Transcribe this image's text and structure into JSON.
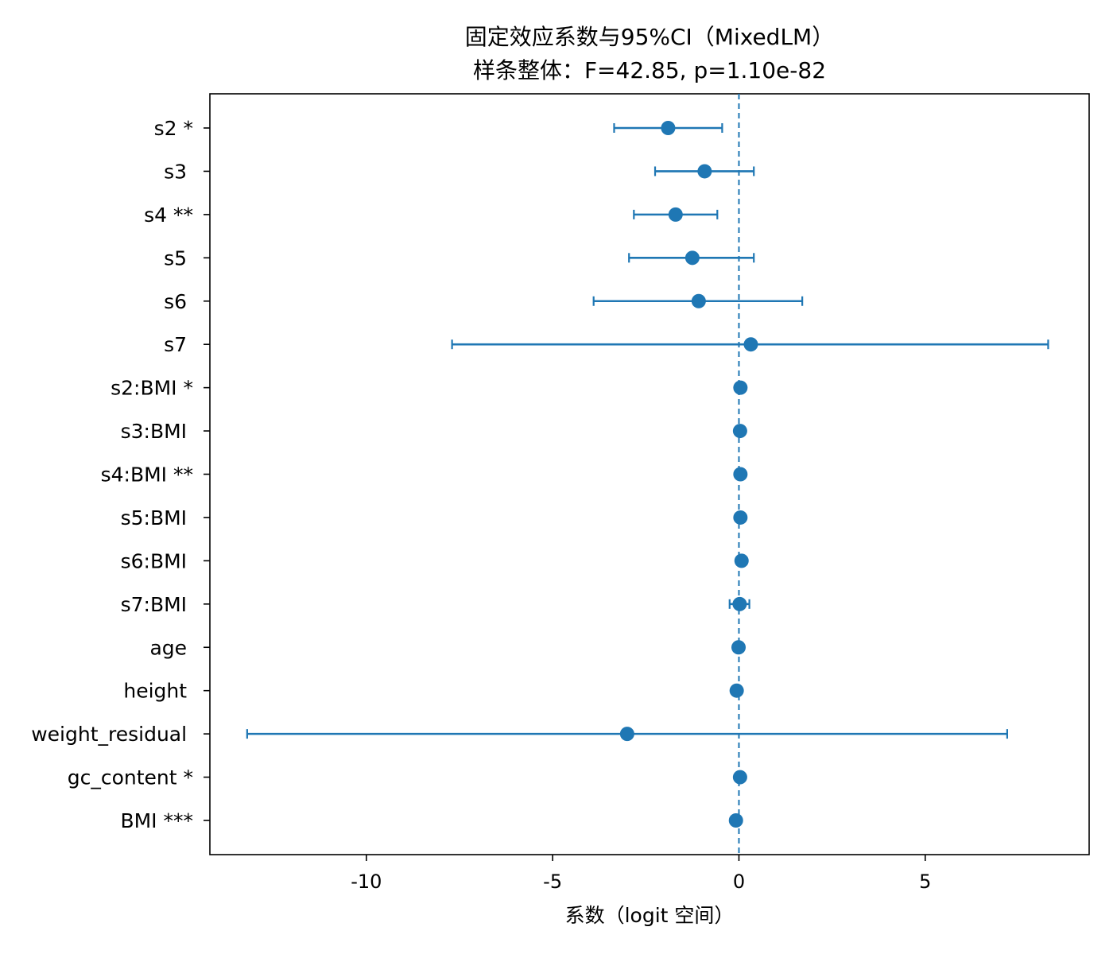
{
  "chart_data": {
    "type": "forest",
    "title": "固定效应系数与95%CI（MixedLM）",
    "subtitle": "样条整体：F=42.85, p=1.10e-82",
    "xlabel": "系数（logit 空间）",
    "ylabel": "",
    "xlim": [
      -14.2,
      9.4
    ],
    "xticks": [
      -10,
      -5,
      0,
      5
    ],
    "xtick_labels": [
      "-10",
      "-5",
      "0",
      "5"
    ],
    "reference_line": 0,
    "color": "#1f77b4",
    "terms": [
      {
        "label": "s2 *",
        "coef": -1.9,
        "lo": -3.35,
        "hi": -0.45
      },
      {
        "label": "s3 ",
        "coef": -0.92,
        "lo": -2.25,
        "hi": 0.4
      },
      {
        "label": "s4 **",
        "coef": -1.7,
        "lo": -2.82,
        "hi": -0.58
      },
      {
        "label": "s5 ",
        "coef": -1.25,
        "lo": -2.95,
        "hi": 0.4
      },
      {
        "label": "s6 ",
        "coef": -1.08,
        "lo": -3.9,
        "hi": 1.7
      },
      {
        "label": "s7 ",
        "coef": 0.32,
        "lo": -7.7,
        "hi": 8.3
      },
      {
        "label": "s2:BMI *",
        "coef": 0.04,
        "lo": 0.01,
        "hi": 0.07
      },
      {
        "label": "s3:BMI ",
        "coef": 0.03,
        "lo": 0.0,
        "hi": 0.06
      },
      {
        "label": "s4:BMI **",
        "coef": 0.04,
        "lo": 0.01,
        "hi": 0.07
      },
      {
        "label": "s5:BMI ",
        "coef": 0.04,
        "lo": 0.01,
        "hi": 0.07
      },
      {
        "label": "s6:BMI ",
        "coef": 0.07,
        "lo": 0.04,
        "hi": 0.1
      },
      {
        "label": "s7:BMI ",
        "coef": 0.02,
        "lo": -0.25,
        "hi": 0.28
      },
      {
        "label": "age ",
        "coef": -0.01,
        "lo": -0.04,
        "hi": 0.02
      },
      {
        "label": "height ",
        "coef": -0.06,
        "lo": -0.09,
        "hi": -0.03
      },
      {
        "label": "weight_residual ",
        "coef": -3.0,
        "lo": -13.2,
        "hi": 7.2
      },
      {
        "label": "gc_content *",
        "coef": 0.03,
        "lo": 0.0,
        "hi": 0.06
      },
      {
        "label": "BMI ***",
        "coef": -0.08,
        "lo": -0.11,
        "hi": -0.05
      }
    ],
    "grid": false,
    "legend": "none"
  }
}
